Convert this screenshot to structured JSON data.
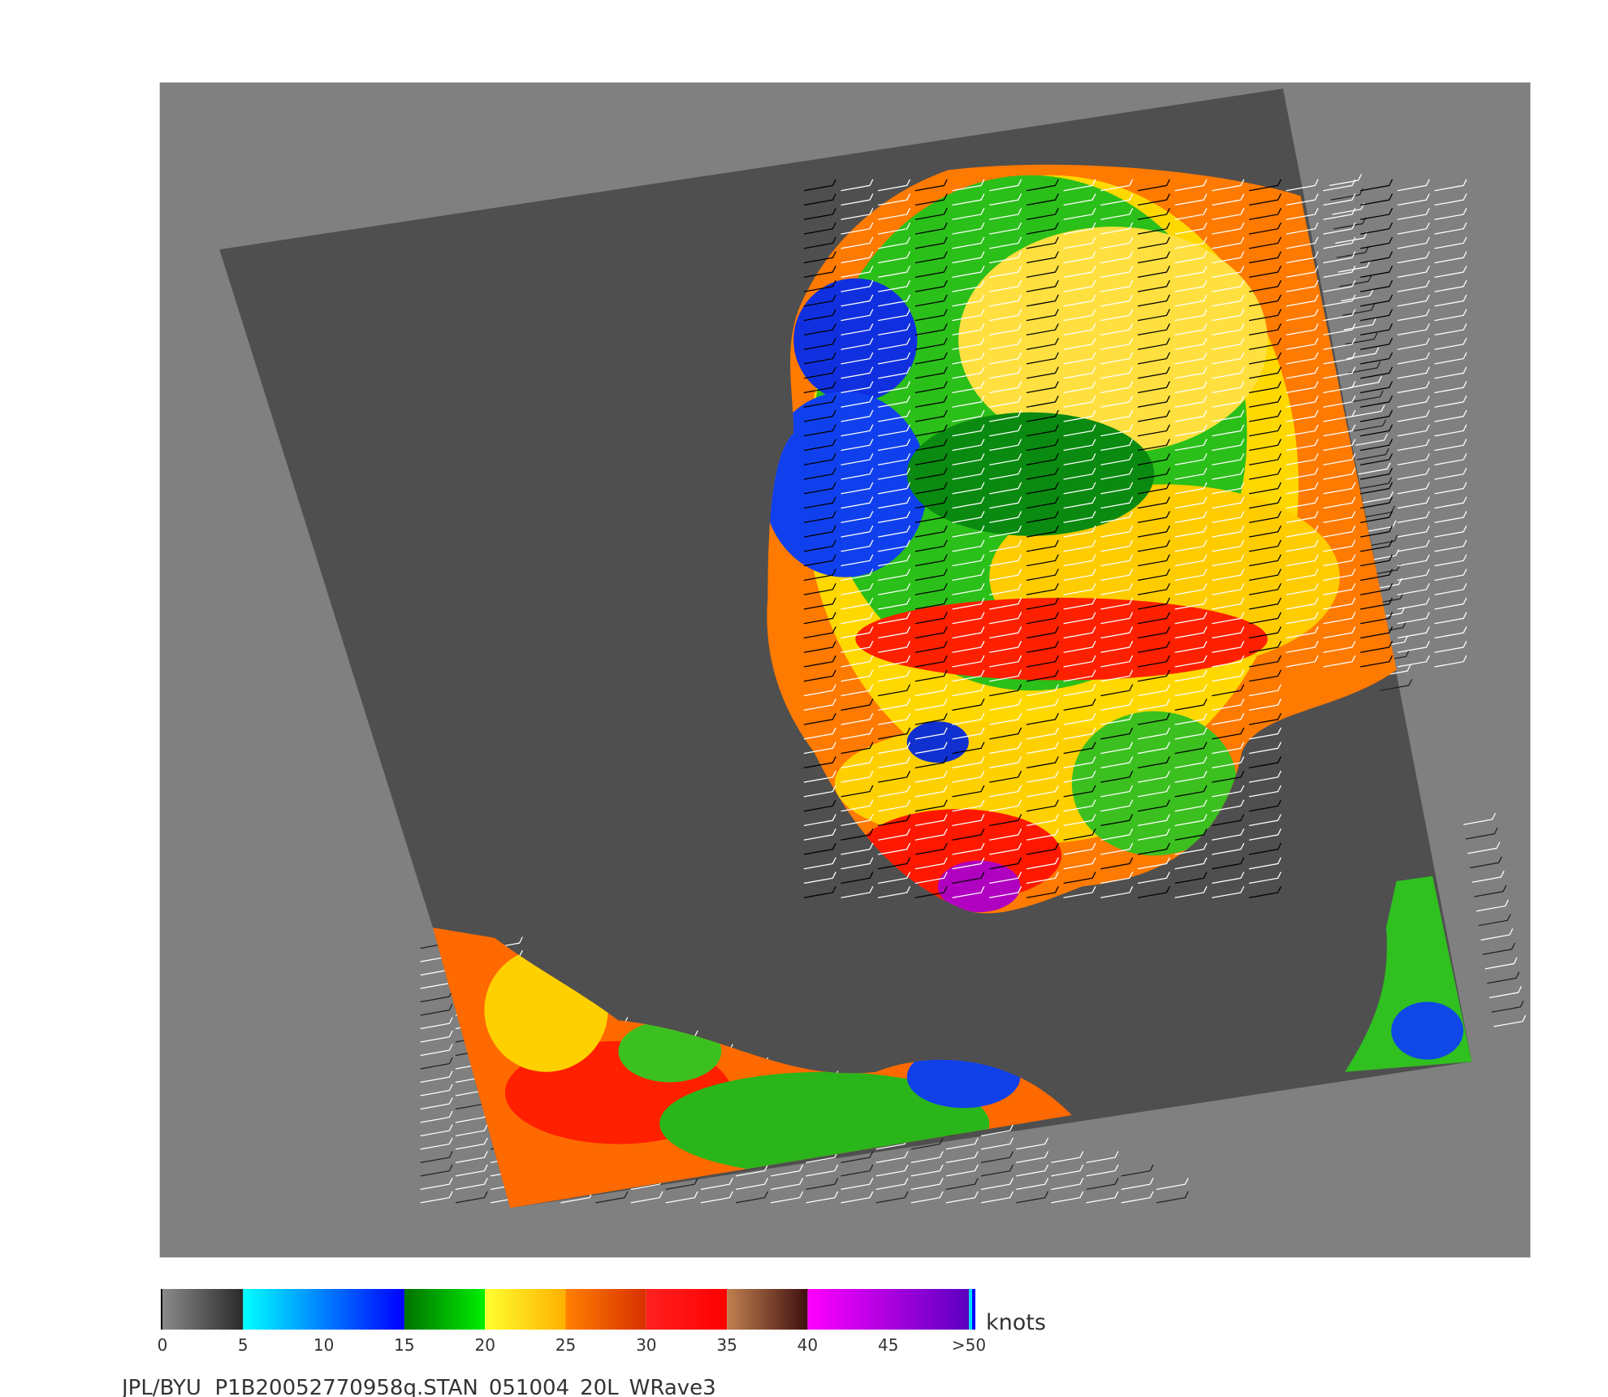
{
  "colorbar": {
    "range": [
      0,
      50
    ],
    "segments": [
      {
        "from": 0,
        "to": 5,
        "colors": [
          "#8a8a8a",
          "#2a2a2a"
        ]
      },
      {
        "from": 5,
        "to": 15,
        "colors": [
          "#00ffff",
          "#0000ff"
        ]
      },
      {
        "from": 15,
        "to": 20,
        "colors": [
          "#007000",
          "#00f000"
        ]
      },
      {
        "from": 20,
        "to": 25,
        "colors": [
          "#ffff30",
          "#ffb000"
        ]
      },
      {
        "from": 25,
        "to": 30,
        "colors": [
          "#ff8000",
          "#d83000"
        ]
      },
      {
        "from": 30,
        "to": 35,
        "colors": [
          "#ff2020",
          "#ff0000"
        ]
      },
      {
        "from": 35,
        "to": 40,
        "colors": [
          "#c08050",
          "#401010"
        ]
      },
      {
        "from": 40,
        "to": 50,
        "colors": [
          "#ff00ff",
          "#5a00c0"
        ]
      }
    ],
    "ticks": [
      0,
      5,
      10,
      15,
      20,
      25,
      30,
      35,
      40,
      45,
      {
        "value": 50,
        "label": ">50"
      }
    ],
    "unit": "knots"
  },
  "footer": "JPL/BYU  P1B20052770958q.STAN_051004_20L_WRave3"
}
